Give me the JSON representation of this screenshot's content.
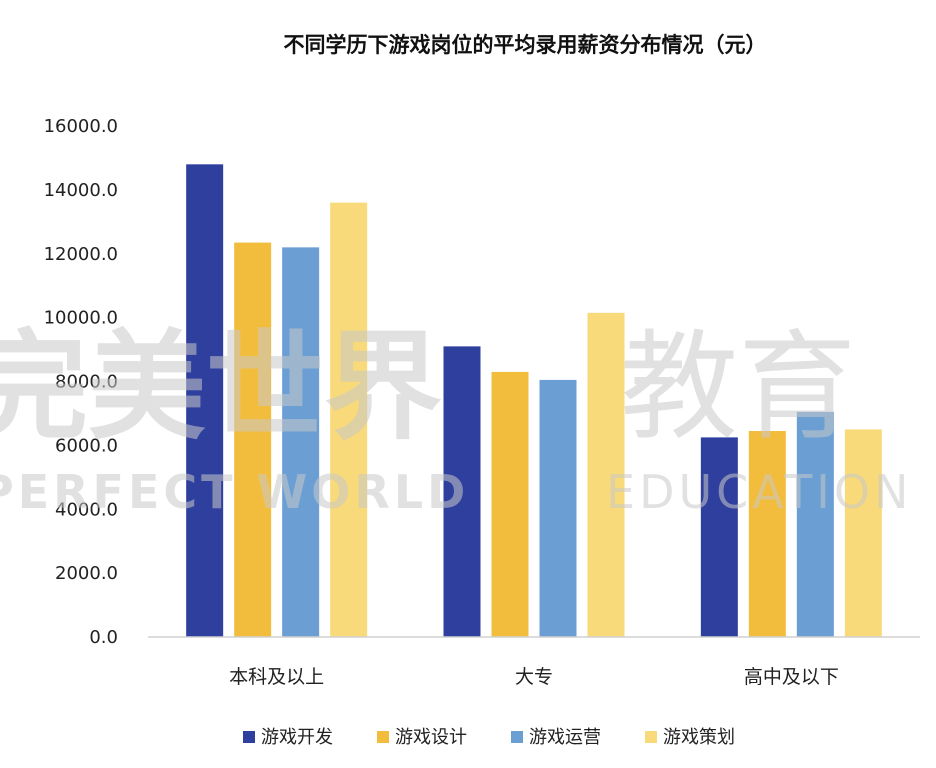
{
  "chart_data": {
    "type": "bar",
    "title": "不同学历下游戏岗位的平均录用薪资分布情况（元）",
    "categories": [
      "本科及以上",
      "大专",
      "高中及以下"
    ],
    "series": [
      {
        "name": "游戏开发",
        "color": "#2E3F9E",
        "values": [
          14800,
          9100,
          6250
        ]
      },
      {
        "name": "游戏设计",
        "color": "#F2BD3C",
        "values": [
          12350,
          8300,
          6450
        ]
      },
      {
        "name": "游戏运营",
        "color": "#6B9FD4",
        "values": [
          12200,
          8050,
          7050
        ]
      },
      {
        "name": "游戏策划",
        "color": "#F8DA7A",
        "values": [
          13600,
          10150,
          6500
        ]
      }
    ],
    "yticks": [
      "0.0",
      "2000.0",
      "4000.0",
      "6000.0",
      "8000.0",
      "10000.0",
      "12000.0",
      "14000.0",
      "16000.0"
    ],
    "ylim": [
      0,
      16000
    ],
    "legend_position": "bottom",
    "grid": false
  },
  "watermark": {
    "cn_left": "完美世界",
    "cn_right": "教育",
    "en_left": "PERFECT WORLD",
    "en_right": "EDUCATION"
  }
}
